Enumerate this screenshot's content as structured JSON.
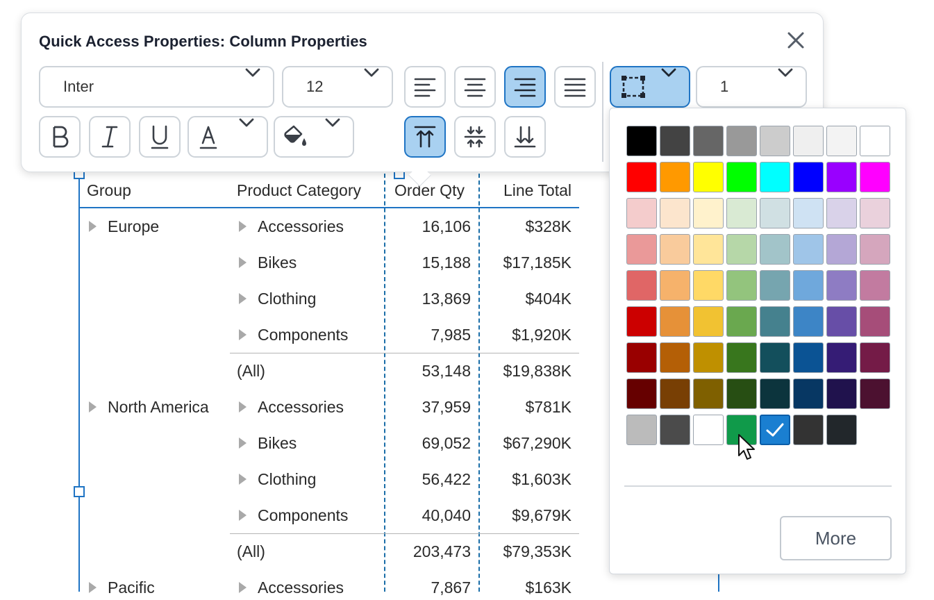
{
  "panel": {
    "title": "Quick Access Properties: Column Properties",
    "font_family": "Inter",
    "font_size": "12",
    "border_width": "1"
  },
  "table": {
    "headers": [
      "Group",
      "Product Category",
      "Order Qty",
      "Line Total"
    ],
    "rows": [
      {
        "group": "Europe",
        "category": "Accessories",
        "qty": "16,106",
        "total": "$328K"
      },
      {
        "group": "",
        "category": "Bikes",
        "qty": "15,188",
        "total": "$17,185K"
      },
      {
        "group": "",
        "category": "Clothing",
        "qty": "13,869",
        "total": "$404K"
      },
      {
        "group": "",
        "category": "Components",
        "qty": "7,985",
        "total": "$1,920K"
      },
      {
        "group": "",
        "category": "(All)",
        "qty": "53,148",
        "total": "$19,838K"
      },
      {
        "group": "North America",
        "category": "Accessories",
        "qty": "37,959",
        "total": "$781K"
      },
      {
        "group": "",
        "category": "Bikes",
        "qty": "69,052",
        "total": "$67,290K"
      },
      {
        "group": "",
        "category": "Clothing",
        "qty": "56,422",
        "total": "$1,603K"
      },
      {
        "group": "",
        "category": "Components",
        "qty": "40,040",
        "total": "$9,679K"
      },
      {
        "group": "",
        "category": "(All)",
        "qty": "203,473",
        "total": "$79,353K"
      },
      {
        "group": "Pacific",
        "category": "Accessories",
        "qty": "7,867",
        "total": "$163K"
      }
    ]
  },
  "palette": {
    "rows": [
      [
        "#000000",
        "#434343",
        "#666666",
        "#999999",
        "#cccccc",
        "#efefef",
        "#f3f3f3",
        "#ffffff"
      ],
      [
        "#ff0000",
        "#ff9900",
        "#ffff00",
        "#00ff00",
        "#00ffff",
        "#0000ff",
        "#9900ff",
        "#ff00ff"
      ],
      [
        "#f4cccc",
        "#fce5cd",
        "#fff2cc",
        "#d9ead3",
        "#d0e0e3",
        "#cfe2f3",
        "#d9d2e9",
        "#ead1dc"
      ],
      [
        "#ea9999",
        "#f9cb9c",
        "#ffe599",
        "#b6d7a8",
        "#a2c4c9",
        "#9fc5e8",
        "#b4a7d6",
        "#d5a6bd"
      ],
      [
        "#e06666",
        "#f6b26b",
        "#ffd966",
        "#93c47d",
        "#76a5af",
        "#6fa8dc",
        "#8e7cc3",
        "#c27ba0"
      ],
      [
        "#cc0000",
        "#e69138",
        "#f1c232",
        "#6aa84f",
        "#45818e",
        "#3d85c6",
        "#674ea7",
        "#a64d79"
      ],
      [
        "#990000",
        "#b45f06",
        "#bf9000",
        "#38761d",
        "#134f5c",
        "#0b5394",
        "#351c75",
        "#741b47"
      ],
      [
        "#660000",
        "#783f04",
        "#7f6000",
        "#274e13",
        "#0c343d",
        "#073763",
        "#20124d",
        "#4c1130"
      ],
      [
        "#bbbbbb",
        "#4b4b4b",
        "#ffffff",
        "#109a4a",
        "#1a7fd1",
        "#333333",
        "#22272b"
      ]
    ],
    "selected": "#1a7fd1",
    "more_label": "More"
  },
  "colors": {
    "accent": "#1f74c4",
    "active_button": "#a9d1f1"
  }
}
